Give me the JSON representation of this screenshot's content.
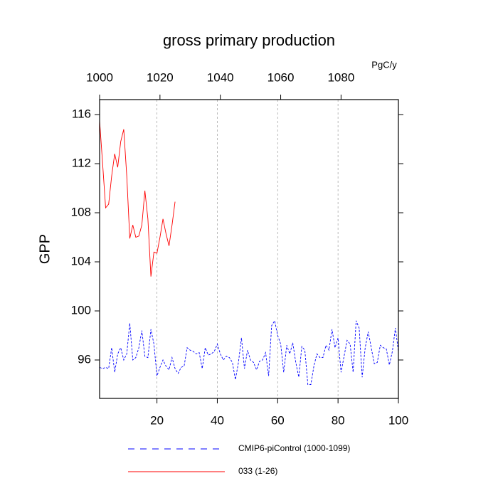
{
  "chart_data": {
    "type": "line",
    "title": "gross primary production",
    "ylabel": "GPP",
    "units": "PgC/y",
    "xlim": [
      1,
      100
    ],
    "xticks": [
      20,
      40,
      60,
      80,
      100
    ],
    "xtick_color": "#ff0000",
    "x2lim": [
      1000,
      1099
    ],
    "x2ticks": [
      1000,
      1020,
      1040,
      1060,
      1080
    ],
    "x2tick_color": "#0000ff",
    "ylim": [
      92.87,
      117.22
    ],
    "yticks": [
      96,
      100,
      104,
      108,
      112,
      116
    ],
    "grid": true,
    "series": [
      {
        "name": "CMIP6-piControl (1000-1099)",
        "color": "#0000ff",
        "dashed": true,
        "x": [
          1,
          2,
          3,
          4,
          5,
          6,
          7,
          8,
          9,
          10,
          11,
          12,
          13,
          14,
          15,
          16,
          17,
          18,
          19,
          20,
          21,
          22,
          23,
          24,
          25,
          26,
          27,
          28,
          29,
          30,
          31,
          32,
          33,
          34,
          35,
          36,
          37,
          38,
          39,
          40,
          41,
          42,
          43,
          44,
          45,
          46,
          47,
          48,
          49,
          50,
          51,
          52,
          53,
          54,
          55,
          56,
          57,
          58,
          59,
          60,
          61,
          62,
          63,
          64,
          65,
          66,
          67,
          68,
          69,
          70,
          71,
          72,
          73,
          74,
          75,
          76,
          77,
          78,
          79,
          80,
          81,
          82,
          83,
          84,
          85,
          86,
          87,
          88,
          89,
          90,
          91,
          92,
          93,
          94,
          95,
          96,
          97,
          98,
          99,
          100
        ],
        "values": [
          95.4,
          95.3,
          95.4,
          95.3,
          97,
          95,
          96.5,
          97,
          96,
          96.5,
          99,
          96,
          96.2,
          97,
          98.4,
          96.3,
          96.2,
          98.5,
          97.3,
          94.7,
          95.4,
          96,
          95.5,
          95.2,
          96.2,
          95.3,
          94.9,
          95.4,
          95.5,
          97,
          96.8,
          96.7,
          96.5,
          96.6,
          95.3,
          97,
          96.4,
          96.5,
          96.7,
          97.3,
          96.5,
          96,
          96.3,
          96.2,
          95.8,
          94.4,
          95.8,
          97.8,
          95.3,
          96.8,
          96,
          95.8,
          95.2,
          95.9,
          96,
          96.6,
          94.7,
          98.8,
          99.2,
          98,
          97.3,
          95,
          97.2,
          96.5,
          97.4,
          95.8,
          94.6,
          97.1,
          96.8,
          94,
          94,
          95.5,
          96.5,
          96.2,
          96.2,
          97.2,
          96.8,
          98.5,
          97,
          97.8,
          95,
          96.3,
          97.6,
          97.3,
          95,
          99.2,
          98.6,
          94.6,
          97,
          98.3,
          97,
          95.7,
          95.8,
          97.2,
          97,
          96.9,
          95.6,
          96.7,
          98.6,
          96.7
        ]
      },
      {
        "name": "033 (1-26)",
        "color": "#ff0000",
        "dashed": false,
        "x": [
          1,
          2,
          3,
          4,
          5,
          6,
          7,
          8,
          9,
          10,
          11,
          12,
          13,
          14,
          15,
          16,
          17,
          18,
          19,
          20,
          21,
          22,
          23,
          24,
          25,
          26
        ],
        "values": [
          115.5,
          112,
          108.4,
          108.7,
          111,
          112.8,
          111.7,
          113.8,
          114.8,
          111,
          105.9,
          107,
          106,
          106.1,
          107,
          109.8,
          107.5,
          102.8,
          104.8,
          104.7,
          106,
          107.5,
          106.3,
          105.3,
          107,
          108.9
        ]
      }
    ]
  }
}
